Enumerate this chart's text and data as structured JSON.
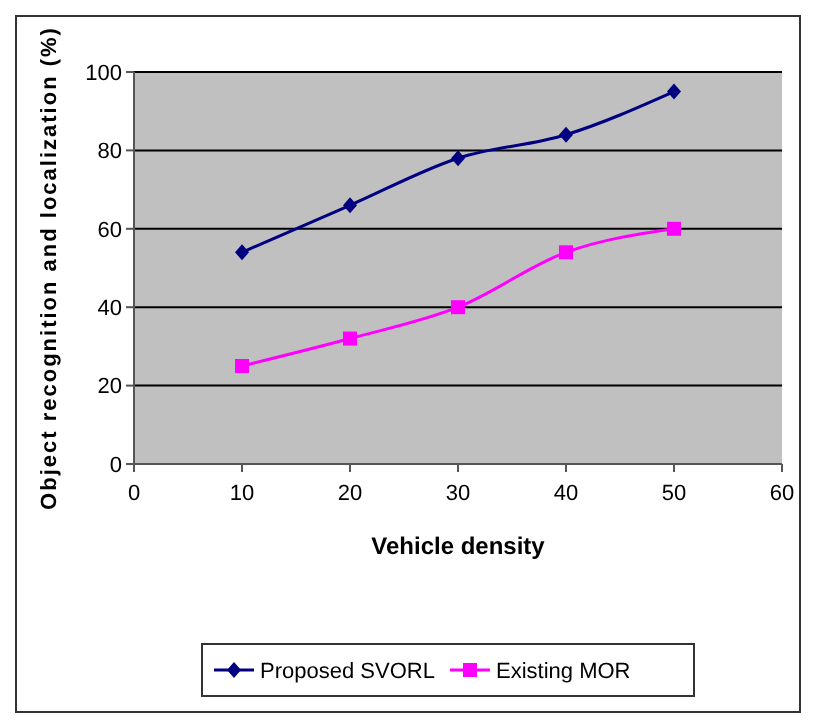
{
  "chart_data": {
    "type": "line",
    "xlabel": "Vehicle density",
    "ylabel": "Object recognition and localization (%)",
    "x": [
      10,
      20,
      30,
      40,
      50
    ],
    "series": [
      {
        "name": "Proposed SVORL",
        "color": "#000080",
        "values": [
          54,
          66,
          78,
          84,
          95
        ],
        "marker": "diamond"
      },
      {
        "name": "Existing MOR",
        "color": "#ff00ff",
        "values": [
          25,
          32,
          40,
          54,
          60
        ],
        "marker": "square"
      }
    ],
    "xlim": [
      0,
      60
    ],
    "xticks": [
      0,
      10,
      20,
      30,
      40,
      50,
      60
    ],
    "ylim": [
      0,
      100
    ],
    "yticks": [
      0,
      20,
      40,
      60,
      80,
      100
    ],
    "grid": "y",
    "legend": "bottom",
    "line_style": "solid"
  }
}
